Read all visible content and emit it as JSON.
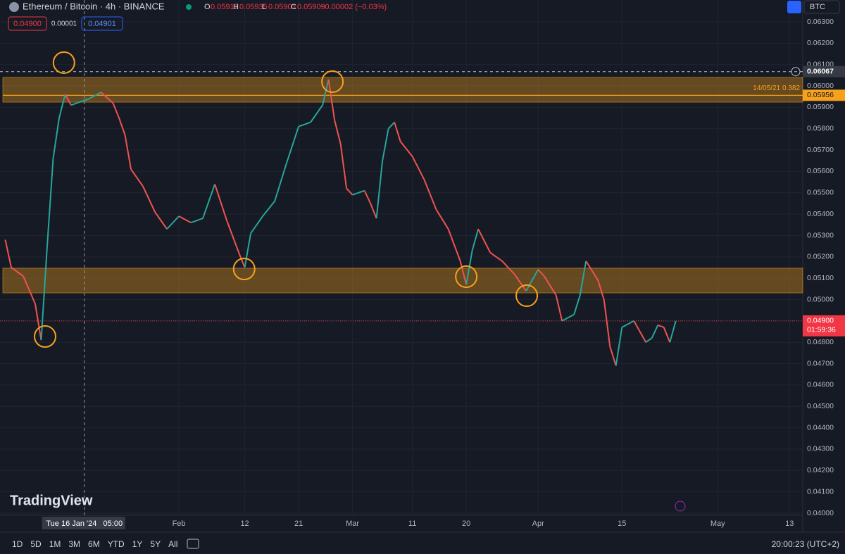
{
  "header": {
    "symbol": "Ethereum / Bitcoin · 4h · BINANCE",
    "ohlc": [
      {
        "key": "O",
        "value": "0.05912"
      },
      {
        "key": "H",
        "value": "0.05935"
      },
      {
        "key": "L",
        "value": "0.05901"
      },
      {
        "key": "C",
        "value": "0.05909"
      }
    ],
    "change": "−0.00002 (−0.03%)",
    "bid": "0.04900",
    "spread": "0.00001",
    "ask": "0.04901",
    "currency": "BTC"
  },
  "chart_data": {
    "type": "line",
    "x": [
      3,
      4,
      6,
      8,
      9,
      10,
      11,
      12,
      13,
      14,
      15,
      17,
      19,
      21,
      22,
      23,
      24,
      26,
      28,
      30,
      32,
      34,
      36,
      38,
      40,
      42,
      43,
      44,
      46,
      48,
      50,
      52,
      54,
      56,
      57,
      58,
      59,
      60,
      61,
      62,
      63,
      64,
      65,
      66,
      67,
      68,
      69,
      71,
      73,
      75,
      77,
      79,
      80,
      81,
      82,
      84,
      86,
      88,
      90,
      92,
      93,
      95,
      96,
      98,
      99,
      100,
      102,
      103,
      104,
      105,
      106,
      108,
      110,
      111,
      112,
      113,
      114,
      115
    ],
    "series": [
      {
        "name": "ETHBTC",
        "up_color": "#26a69a",
        "down_color": "#ef5350",
        "values": [
          0.0528,
          0.0515,
          0.0511,
          0.0498,
          0.0481,
          0.0525,
          0.0566,
          0.0585,
          0.0596,
          0.0591,
          0.0592,
          0.0594,
          0.0597,
          0.0592,
          0.0585,
          0.0577,
          0.0561,
          0.0553,
          0.0541,
          0.0533,
          0.0539,
          0.0536,
          0.0538,
          0.0554,
          0.0537,
          0.0522,
          0.0515,
          0.0531,
          0.0539,
          0.0546,
          0.0564,
          0.0581,
          0.0583,
          0.0591,
          0.0603,
          0.0584,
          0.0573,
          0.0552,
          0.0549,
          0.055,
          0.0551,
          0.0545,
          0.0538,
          0.0565,
          0.058,
          0.0583,
          0.0574,
          0.0567,
          0.0556,
          0.0542,
          0.0533,
          0.0518,
          0.0507,
          0.0523,
          0.0533,
          0.0522,
          0.0518,
          0.0512,
          0.0504,
          0.0514,
          0.0511,
          0.0502,
          0.049,
          0.0493,
          0.0502,
          0.0518,
          0.0509,
          0.05,
          0.0478,
          0.0469,
          0.0487,
          0.049,
          0.048,
          0.0482,
          0.0488,
          0.0487,
          0.048,
          0.049
        ]
      }
    ],
    "xlim": [
      2.12,
      136.2
    ],
    "xticks": [
      {
        "value": 32,
        "label": "Feb"
      },
      {
        "value": 43,
        "label": "12"
      },
      {
        "value": 52,
        "label": "21"
      },
      {
        "value": 61,
        "label": "Mar"
      },
      {
        "value": 71,
        "label": "11"
      },
      {
        "value": 80,
        "label": "20"
      },
      {
        "value": 92,
        "label": "Apr"
      },
      {
        "value": 106,
        "label": "15"
      },
      {
        "value": 122,
        "label": "May"
      },
      {
        "value": 134,
        "label": "13"
      }
    ],
    "ylim": [
      0.04,
      0.063
    ],
    "yticks": [
      {
        "value": 0.04,
        "label": "0.04000"
      },
      {
        "value": 0.041,
        "label": "0.04100"
      },
      {
        "value": 0.042,
        "label": "0.04200"
      },
      {
        "value": 0.043,
        "label": "0.04300"
      },
      {
        "value": 0.044,
        "label": "0.04400"
      },
      {
        "value": 0.045,
        "label": "0.04500"
      },
      {
        "value": 0.046,
        "label": "0.04600"
      },
      {
        "value": 0.047,
        "label": "0.04700"
      },
      {
        "value": 0.048,
        "label": "0.04800"
      },
      {
        "value": 0.049,
        "label": "0.04900"
      },
      {
        "value": 0.05,
        "label": "0.05000"
      },
      {
        "value": 0.051,
        "label": "0.05100"
      },
      {
        "value": 0.052,
        "label": "0.05200"
      },
      {
        "value": 0.053,
        "label": "0.05300"
      },
      {
        "value": 0.054,
        "label": "0.05400"
      },
      {
        "value": 0.055,
        "label": "0.05500"
      },
      {
        "value": 0.056,
        "label": "0.05600"
      },
      {
        "value": 0.057,
        "label": "0.05700"
      },
      {
        "value": 0.058,
        "label": "0.05800"
      },
      {
        "value": 0.059,
        "label": "0.05900"
      },
      {
        "value": 0.06,
        "label": "0.06000"
      },
      {
        "value": 0.061,
        "label": "0.06100"
      },
      {
        "value": 0.062,
        "label": "0.06200"
      },
      {
        "value": 0.063,
        "label": "0.06300"
      }
    ],
    "grid": true,
    "zones": [
      {
        "top": 0.0604,
        "bottom": 0.05924,
        "color": "#f7a21b"
      },
      {
        "top": 0.05147,
        "bottom": 0.05031,
        "color": "#f7a21b"
      }
    ],
    "highlights": [
      {
        "x": 9.65,
        "y": 0.04827
      },
      {
        "x": 12.8,
        "y": 0.06109
      },
      {
        "x": 57.65,
        "y": 0.0602
      },
      {
        "x": 42.9,
        "y": 0.05143
      },
      {
        "x": 80,
        "y": 0.05107
      },
      {
        "x": 90.1,
        "y": 0.05018
      }
    ],
    "highlight_color": "#f7a21b",
    "crosshair": {
      "x": 16.2,
      "y": {
        "value": 0.06067,
        "label": "0.06067"
      },
      "x_label": "Tue 16 Jan '24   05:00"
    },
    "fib_line": {
      "value": 0.05956,
      "price_label": "0.05956",
      "label": "14/05/21 0.382",
      "color": "#f7a21b"
    },
    "last_price": {
      "value": 0.049,
      "label": "0.04900",
      "countdown": "01:59:36",
      "color": "#f23645"
    }
  },
  "footer": {
    "ranges": [
      "1D",
      "5D",
      "1M",
      "3M",
      "6M",
      "YTD",
      "1Y",
      "5Y",
      "All"
    ],
    "clock": "20:00:23 (UTC+2)",
    "brand": "TradingView"
  }
}
